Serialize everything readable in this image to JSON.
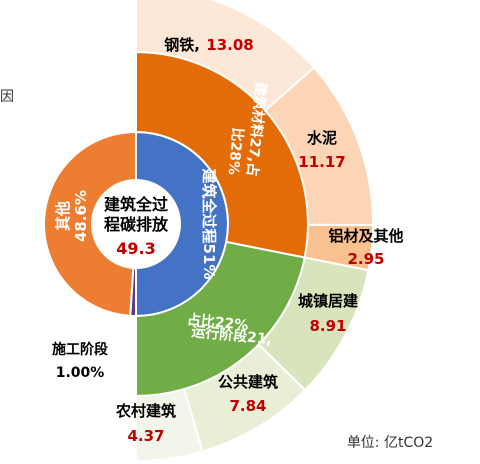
{
  "stray_char": "因",
  "chart_data": {
    "type": "sunburst",
    "center": {
      "line1": "建筑全过",
      "line2": "程碳排放",
      "total": "49.3"
    },
    "inner_ring": [
      {
        "name": "其他",
        "pct_label": "48.6%",
        "value": 48.6,
        "color": "#ed7d31",
        "text_color": "#ffffff"
      },
      {
        "name": "建筑全过程51%",
        "value": 51.0,
        "color": "#4472c4",
        "text_color": "#ffffff"
      },
      {
        "name": "施工阶段",
        "pct_label": "1.00%",
        "value": 1.0,
        "color": "#5b3a8c",
        "text_color": "#000000"
      }
    ],
    "middle_ring": [
      {
        "name": "建筑材料27,占",
        "name2": "比28%",
        "value": 27,
        "color": "#e36c09",
        "text_color": "#ffffff"
      },
      {
        "name": "运行阶段21,",
        "name2": "占比22%",
        "value": 21,
        "color": "#70ad47",
        "text_color": "#ffffff"
      }
    ],
    "outer_ring": [
      {
        "name": "钢铁,",
        "value_label": "13.08",
        "value": 13.08,
        "group": "building-materials",
        "color": "#fde8d7"
      },
      {
        "name": "水泥",
        "value_label": "11.17",
        "value": 11.17,
        "group": "building-materials",
        "color": "#fbd5b5"
      },
      {
        "name": "铝材及其他",
        "value_label": "2.95",
        "value": 2.95,
        "group": "building-materials",
        "color": "#f9c190"
      },
      {
        "name": "城镇居建",
        "value_label": "8.91",
        "value": 8.91,
        "group": "operation",
        "color": "#d8e4bc"
      },
      {
        "name": "公共建筑",
        "value_label": "7.84",
        "value": 7.84,
        "group": "operation",
        "color": "#e8efd6"
      },
      {
        "name": "农村建筑",
        "value_label": "4.37",
        "value": 4.37,
        "group": "operation",
        "color": "#f2f6ea"
      }
    ],
    "unit": "单位: 亿tCO2",
    "value_color": "#c00000"
  }
}
